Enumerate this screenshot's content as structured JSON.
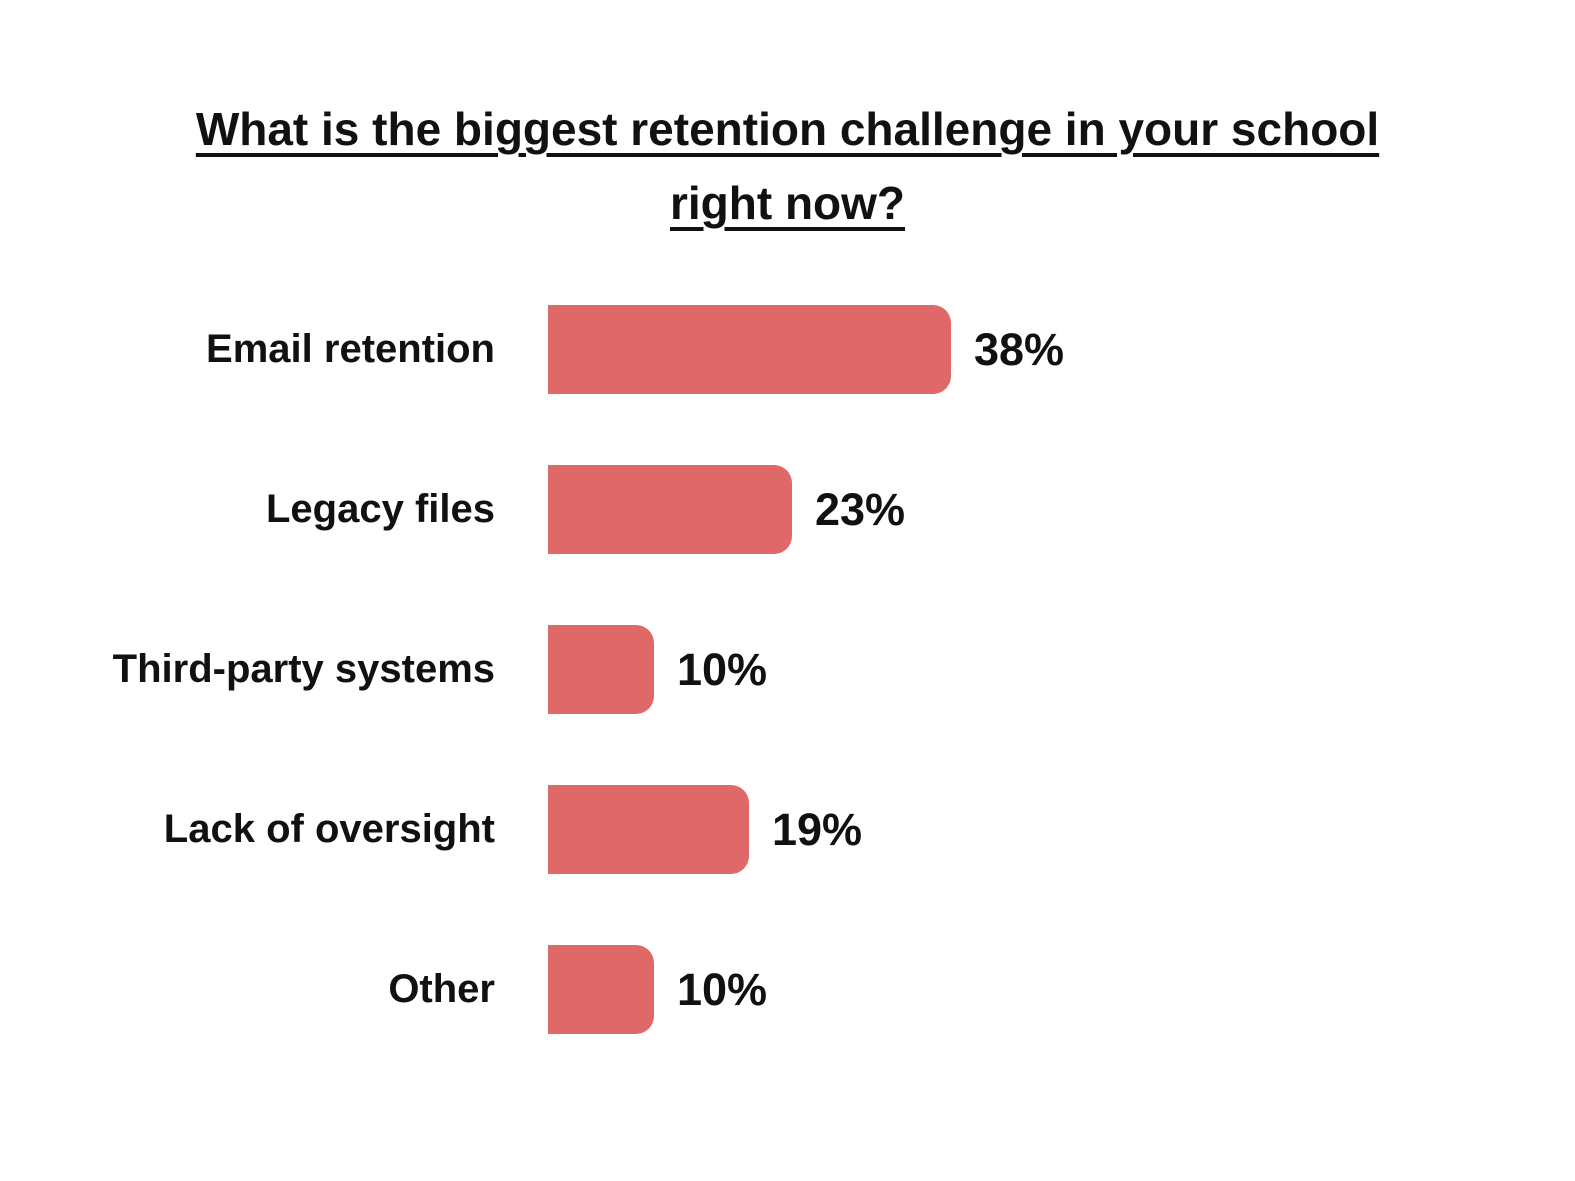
{
  "chart_data": {
    "type": "bar",
    "orientation": "horizontal",
    "title": "What is the biggest retention challenge in your school right now?",
    "title_lines": [
      "What is the biggest retention challenge in your school",
      "right now?"
    ],
    "title_underlined": true,
    "categories": [
      "Email retention",
      "Legacy files",
      "Third-party systems",
      "Lack of oversight",
      "Other"
    ],
    "values": [
      38,
      23,
      10,
      19,
      10
    ],
    "value_labels": [
      "38%",
      "23%",
      "10%",
      "19%",
      "10%"
    ],
    "unit": "%",
    "xlim": [
      0,
      40
    ],
    "grid": false,
    "legend": false,
    "value_label_position": "right-of-bar",
    "bar_color": "#df6868",
    "text_color": "#111111",
    "background_color": "#ffffff"
  }
}
